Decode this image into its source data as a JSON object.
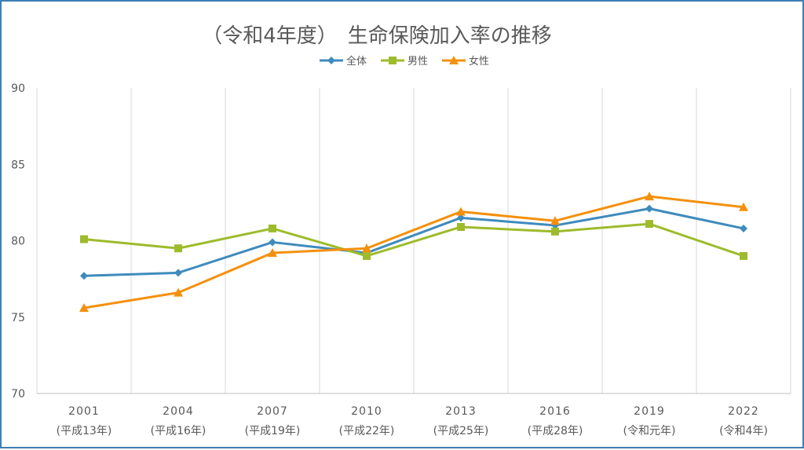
{
  "chart_data": {
    "type": "line",
    "title": "（令和4年度）　生命保険加入率の推移",
    "categories": [
      "2001",
      "2004",
      "2007",
      "2010",
      "2013",
      "2016",
      "2019",
      "2022"
    ],
    "category_sublabels": [
      "(平成13年)",
      "(平成16年)",
      "(平成19年)",
      "(平成22年)",
      "(平成25年)",
      "(平成28年)",
      "(令和元年)",
      "(令和4年)"
    ],
    "ylim": [
      70,
      90
    ],
    "yticks": [
      70,
      75,
      80,
      85,
      90
    ],
    "xlabel": "",
    "ylabel": "",
    "legend_position": "top-center",
    "grid": "vertical",
    "series": [
      {
        "name": "全体",
        "color": "#3f8bbd",
        "marker": "diamond",
        "values": [
          77.7,
          77.9,
          79.9,
          79.2,
          81.5,
          81.0,
          82.1,
          80.8
        ]
      },
      {
        "name": "男性",
        "color": "#9dbb2b",
        "marker": "square",
        "values": [
          80.1,
          79.5,
          80.8,
          79.0,
          80.9,
          80.6,
          81.1,
          79.0
        ]
      },
      {
        "name": "女性",
        "color": "#f4900c",
        "marker": "triangle",
        "values": [
          75.6,
          76.6,
          79.2,
          79.5,
          81.9,
          81.3,
          82.9,
          82.2
        ]
      }
    ]
  }
}
